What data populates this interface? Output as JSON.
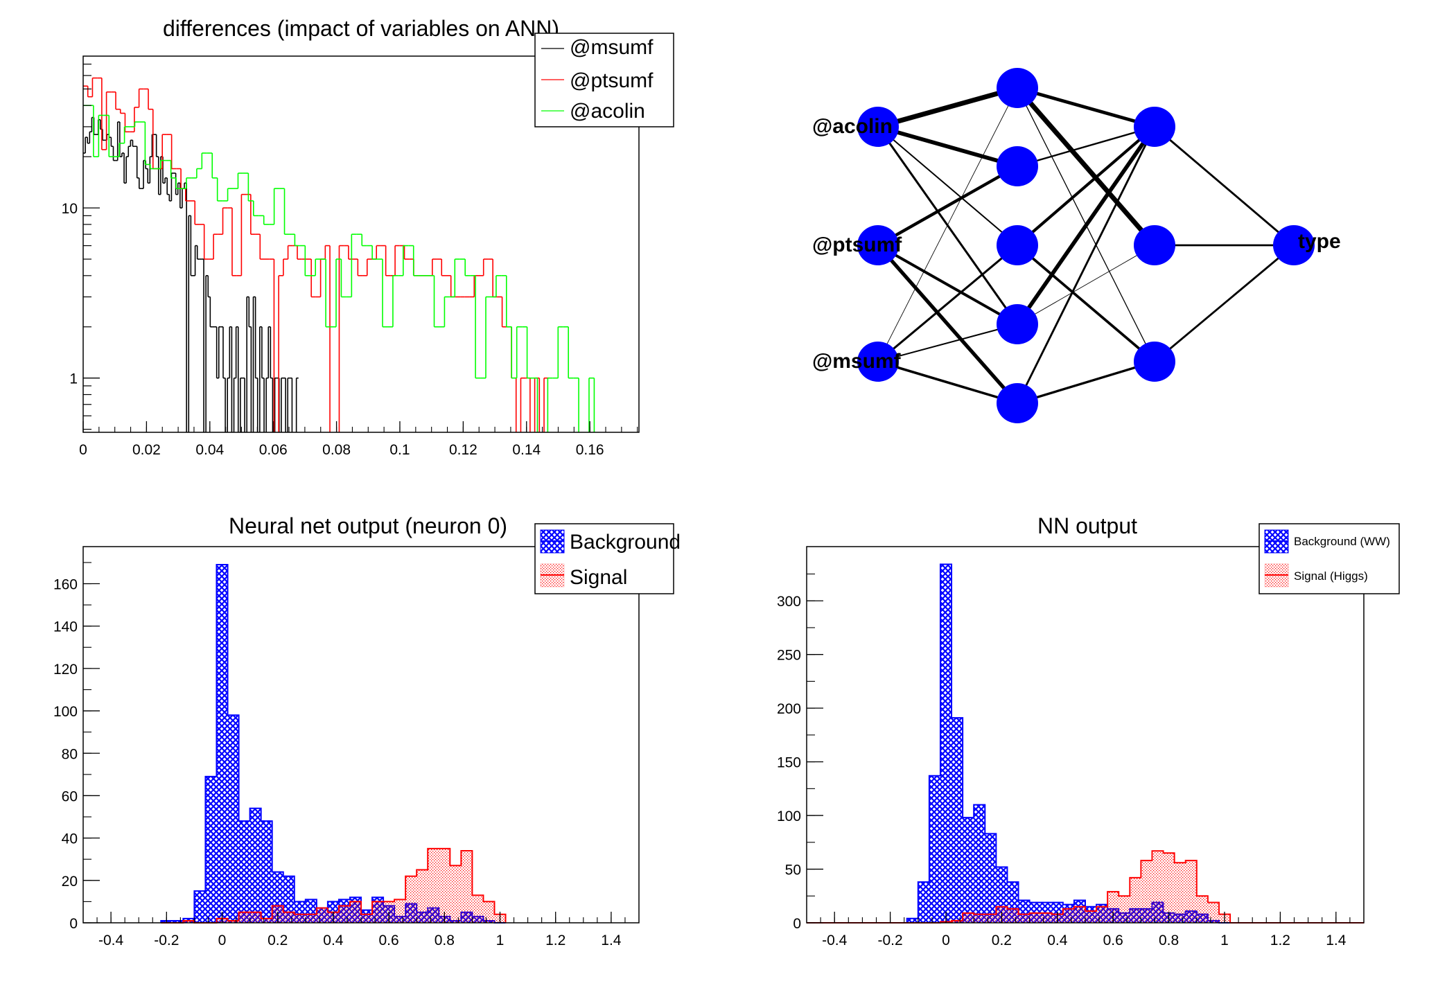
{
  "colors": {
    "black": "#000000",
    "red": "#ff0000",
    "green": "#00ff00",
    "blue": "#0000ff",
    "frame": "#000000"
  },
  "chart_data": [
    {
      "id": "differences",
      "type": "histogram-step",
      "title": "differences (impact of variables on ANN)",
      "xlabel": "",
      "ylabel": "",
      "log_y": true,
      "xlim": [
        0,
        0.1755
      ],
      "ylim": [
        0.48,
        78
      ],
      "x_ticks": [
        0,
        0.02,
        0.04,
        0.06,
        0.08,
        0.1,
        0.12,
        0.14,
        0.16
      ],
      "x_tick_labels": [
        "0",
        "0.02",
        "0.04",
        "0.06",
        "0.08",
        "0.1",
        "0.12",
        "0.14",
        "0.16"
      ],
      "y_ticks": [
        1,
        10
      ],
      "y_tick_labels": [
        "1",
        "10"
      ],
      "legend": {
        "placement": "top-right",
        "entries": [
          "@msumf",
          "@ptsumf",
          "@acolin"
        ]
      },
      "series": [
        {
          "name": "@msumf",
          "color": "#000000",
          "bin_start": 0,
          "bin_width": 0.00068,
          "values": [
            21,
            26,
            24,
            28,
            34,
            27,
            27,
            33,
            29,
            25,
            25,
            27,
            26,
            23,
            19,
            19,
            32,
            20,
            21,
            14,
            20,
            23,
            25,
            23,
            23,
            15,
            13,
            13,
            19,
            17,
            14,
            20,
            27,
            27,
            20,
            12,
            20,
            14,
            15,
            12,
            11,
            16,
            16,
            12,
            14,
            10,
            13,
            14,
            0,
            9,
            4,
            4,
            6,
            5,
            5,
            5,
            0,
            4,
            3,
            2,
            2,
            2,
            1,
            2,
            2,
            1,
            0,
            1,
            2,
            0,
            1,
            2,
            0,
            1,
            1,
            0,
            3,
            2,
            0,
            3,
            1,
            0,
            2,
            1,
            0,
            1,
            2,
            1,
            0,
            1,
            1,
            0,
            1,
            1,
            0,
            1,
            1,
            0,
            0,
            1
          ]
        },
        {
          "name": "@ptsumf",
          "color": "#ff0000",
          "bin_start": 0,
          "bin_width": 0.00147,
          "values": [
            52,
            45,
            58,
            58,
            22,
            48,
            48,
            38,
            36,
            28,
            28,
            39,
            50,
            50,
            38,
            17,
            17,
            27,
            27,
            17,
            17,
            13,
            11,
            11,
            8,
            8,
            5,
            5,
            7,
            7,
            10,
            10,
            4,
            4,
            12,
            12,
            7,
            7,
            5,
            5,
            5,
            0,
            4,
            5,
            6,
            6,
            5,
            5,
            5,
            3,
            3,
            5,
            6,
            0,
            0,
            6,
            6,
            5,
            5,
            4,
            4,
            5,
            5,
            6,
            6,
            4,
            4,
            6,
            6,
            5,
            5,
            4,
            4,
            4,
            4,
            5,
            5,
            4,
            4,
            3,
            3,
            3,
            3,
            3,
            4,
            4,
            5,
            5,
            3,
            3,
            2,
            2,
            1,
            0,
            1,
            1,
            0,
            1,
            0,
            1
          ]
        },
        {
          "name": "@acolin",
          "color": "#00ff00",
          "bin_start": 0,
          "bin_width": 0.00163,
          "values": [
            40,
            40,
            20,
            35,
            35,
            20,
            20,
            24,
            30,
            30,
            32,
            32,
            18,
            17,
            17,
            19,
            19,
            15,
            13,
            13,
            15,
            15,
            17,
            21,
            21,
            15,
            11,
            11,
            13,
            13,
            16,
            16,
            11,
            9,
            9,
            8,
            8,
            13,
            13,
            7,
            7,
            6,
            6,
            4,
            4,
            5,
            5,
            2,
            2,
            5,
            3,
            3,
            7,
            7,
            6,
            6,
            5,
            5,
            2,
            2,
            4,
            4,
            6,
            6,
            4,
            4,
            4,
            4,
            2,
            2,
            3,
            3,
            5,
            5,
            4,
            4,
            1,
            1,
            3,
            3,
            4,
            4,
            2,
            1,
            2,
            2,
            1,
            1,
            0,
            0,
            1,
            1,
            2,
            2,
            1,
            1,
            0,
            0,
            1,
            0
          ]
        }
      ]
    },
    {
      "id": "neuron0",
      "type": "histogram-filled",
      "title": "Neural net output (neuron 0)",
      "xlabel": "",
      "ylabel": "",
      "xlim": [
        -0.5,
        1.5
      ],
      "ylim": [
        0,
        177.5
      ],
      "x_ticks": [
        -0.4,
        -0.2,
        0,
        0.2,
        0.4,
        0.6,
        0.8,
        1,
        1.2,
        1.4
      ],
      "x_tick_labels": [
        "-0.4",
        "-0.2",
        "0",
        "0.2",
        "0.4",
        "0.6",
        "0.8",
        "1",
        "1.2",
        "1.4"
      ],
      "y_ticks": [
        0,
        20,
        40,
        60,
        80,
        100,
        120,
        140,
        160
      ],
      "y_tick_labels": [
        "0",
        "20",
        "40",
        "60",
        "80",
        "100",
        "120",
        "140",
        "160"
      ],
      "legend": {
        "placement": "top-right",
        "entries": [
          "Background",
          "Signal"
        ]
      },
      "bin_start": -0.22,
      "bin_width": 0.04,
      "series": [
        {
          "name": "Background",
          "color": "#0000ff",
          "fill": "crosshatch",
          "values": [
            1,
            1,
            2,
            15,
            69,
            169,
            98,
            48,
            54,
            48,
            24,
            22,
            10,
            11,
            7,
            10,
            11,
            12,
            6,
            12,
            8,
            3,
            9,
            5,
            7,
            3,
            1,
            5,
            3,
            1,
            0
          ]
        },
        {
          "name": "Signal",
          "color": "#ff0000",
          "fill": "dots",
          "values": [
            0,
            0,
            1,
            0,
            0,
            2,
            1,
            5,
            5,
            2,
            8,
            5,
            4,
            4,
            7,
            5,
            8,
            10,
            4,
            10,
            10,
            11,
            22,
            25,
            35,
            35,
            27,
            34,
            13,
            10,
            4
          ]
        }
      ]
    },
    {
      "id": "nn-output",
      "type": "histogram-filled",
      "title": "NN output",
      "xlabel": "",
      "ylabel": "",
      "xlim": [
        -0.5,
        1.5
      ],
      "ylim": [
        0,
        350.5
      ],
      "x_ticks": [
        -0.4,
        -0.2,
        0,
        0.2,
        0.4,
        0.6,
        0.8,
        1,
        1.2,
        1.4
      ],
      "x_tick_labels": [
        "-0.4",
        "-0.2",
        "0",
        "0.2",
        "0.4",
        "0.6",
        "0.8",
        "1",
        "1.2",
        "1.4"
      ],
      "y_ticks": [
        0,
        50,
        100,
        150,
        200,
        250,
        300
      ],
      "y_tick_labels": [
        "0",
        "50",
        "100",
        "150",
        "200",
        "250",
        "300"
      ],
      "legend": {
        "placement": "top-right",
        "entries": [
          "Background (WW)",
          "Signal (Higgs)"
        ]
      },
      "bin_start": -0.14,
      "bin_width": 0.04,
      "series": [
        {
          "name": "Background (WW)",
          "color": "#0000ff",
          "fill": "crosshatch",
          "values": [
            4,
            38,
            137,
            334,
            191,
            98,
            110,
            83,
            52,
            38,
            21,
            19,
            19,
            19,
            17,
            21,
            15,
            17,
            13,
            9,
            13,
            13,
            19,
            9,
            8,
            11,
            8,
            2,
            0
          ]
        },
        {
          "name": "Signal (Higgs)",
          "color": "#ff0000",
          "fill": "dots",
          "values": [
            0,
            0,
            0,
            1,
            2,
            9,
            8,
            8,
            15,
            13,
            8,
            9,
            9,
            8,
            13,
            15,
            11,
            15,
            29,
            25,
            42,
            58,
            67,
            65,
            56,
            58,
            25,
            19,
            8
          ]
        }
      ]
    }
  ],
  "network": {
    "layers": [
      {
        "name": "input",
        "labels": [
          "@acolin",
          "@ptsumf",
          "@msumf"
        ]
      },
      {
        "name": "hidden1",
        "labels": [
          "",
          "",
          "",
          "",
          ""
        ]
      },
      {
        "name": "hidden2",
        "labels": [
          "",
          "",
          ""
        ]
      },
      {
        "name": "output",
        "labels": [
          "type"
        ]
      }
    ],
    "weights_in_h1": [
      [
        3.2,
        2.6,
        0.9,
        1.4,
        0
      ],
      [
        0,
        2.0,
        0,
        1.8,
        2.4
      ],
      [
        0.4,
        0,
        1.4,
        0.9,
        1.6
      ]
    ],
    "weights_h1_h2": [
      [
        2.2,
        3.2,
        0.6
      ],
      [
        1.1,
        0,
        0
      ],
      [
        1.9,
        0,
        1.7
      ],
      [
        2.6,
        0.4,
        0
      ],
      [
        1.3,
        0,
        1.5
      ]
    ],
    "weights_h2_out": [
      [
        1.3
      ],
      [
        1.3
      ],
      [
        1.3
      ]
    ]
  }
}
